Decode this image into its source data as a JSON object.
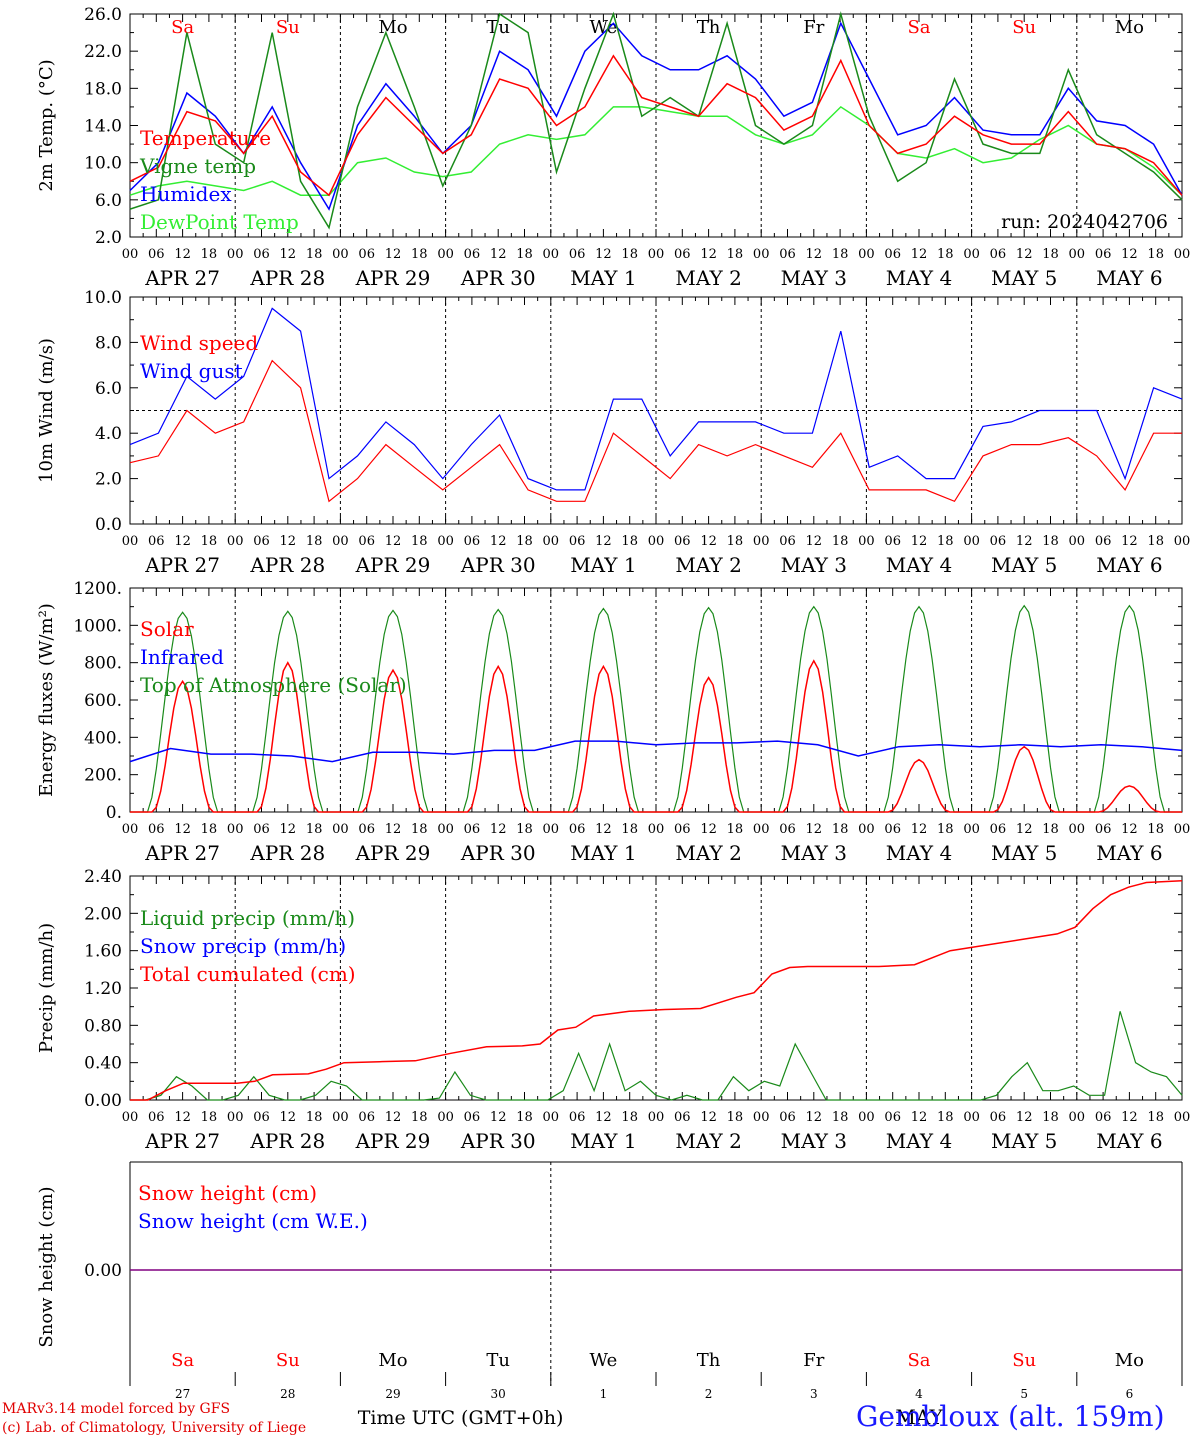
{
  "days_of_week": [
    "Sa",
    "Su",
    "Mo",
    "Tu",
    "We",
    "Th",
    "Fr",
    "Sa",
    "Su",
    "Mo"
  ],
  "weekend_flags": [
    true,
    true,
    false,
    false,
    false,
    false,
    false,
    true,
    true,
    false
  ],
  "date_labels": [
    "APR 27",
    "APR 28",
    "APR 29",
    "APR 30",
    "MAY  1",
    "MAY  2",
    "MAY  3",
    "MAY  4",
    "MAY  5",
    "MAY  6"
  ],
  "hour_ticks": [
    "00",
    "06",
    "12",
    "18"
  ],
  "final_hour_tick": "00",
  "bottom_day_numbers": [
    "27",
    "28",
    "29",
    "30",
    "1",
    "2",
    "3",
    "4",
    "5",
    "6"
  ],
  "bottom_month_label": "MAY",
  "footer": {
    "xlabel": "Time UTC (GMT+0h)",
    "credit_line1": "MARv3.14 model forced by GFS",
    "credit_line2": "(c) Lab. of Climatology, University of Liege",
    "location": "Gembloux (alt. 159m)"
  },
  "colors": {
    "red": "#ff0000",
    "green": "#1a8a1a",
    "blue": "#0000ff",
    "lightgreen": "#33ee33",
    "purple": "#800080"
  },
  "chart_data": [
    {
      "type": "line",
      "ylabel": "2m Temp. (°C)",
      "ylim": [
        2.0,
        26.0
      ],
      "yticks": [
        "2.0",
        "6.0",
        "10.0",
        "14.0",
        "18.0",
        "22.0",
        "26.0"
      ],
      "annotation": "run: 2024042706",
      "x_step_hours": 12,
      "series": [
        {
          "name": "Temperature",
          "color": "red",
          "values": [
            8.0,
            9.5,
            15.5,
            14.5,
            11.0,
            15.0,
            9.0,
            6.5,
            13.0,
            17.0,
            14.0,
            11.0,
            13.0,
            19.0,
            18.0,
            14.0,
            16.0,
            21.5,
            17.0,
            16.0,
            15.0,
            18.5,
            17.0,
            13.5,
            15.0,
            21.0,
            14.0,
            11.0,
            12.0,
            15.0,
            13.0,
            12.0,
            12.0,
            15.5,
            12.0,
            11.5,
            10.0,
            6.5
          ]
        },
        {
          "name": "Vigne temp",
          "color": "green",
          "values": [
            5.0,
            6.0,
            24.0,
            12.0,
            10.0,
            24.0,
            8.0,
            3.0,
            16.0,
            24.0,
            16.0,
            7.5,
            14.0,
            26.0,
            24.0,
            9.0,
            18.0,
            26.0,
            15.0,
            17.0,
            15.0,
            25.0,
            14.0,
            12.0,
            14.0,
            26.0,
            15.0,
            8.0,
            10.0,
            19.0,
            12.0,
            11.0,
            11.0,
            20.0,
            13.0,
            11.0,
            9.0,
            6.0
          ]
        },
        {
          "name": "Humidex",
          "color": "blue",
          "values": [
            7.0,
            10.0,
            17.5,
            15.0,
            11.0,
            16.0,
            10.0,
            5.0,
            14.0,
            18.5,
            15.0,
            11.0,
            14.0,
            22.0,
            20.0,
            15.0,
            22.0,
            25.0,
            21.5,
            20.0,
            20.0,
            21.5,
            19.0,
            15.0,
            16.5,
            25.0,
            19.0,
            13.0,
            14.0,
            17.0,
            13.5,
            13.0,
            13.0,
            18.0,
            14.5,
            14.0,
            12.0,
            6.5
          ]
        },
        {
          "name": "DewPoint Temp",
          "color": "lightgreen",
          "values": [
            6.5,
            7.5,
            8.0,
            7.5,
            7.0,
            8.0,
            6.5,
            6.5,
            10.0,
            10.5,
            9.0,
            8.5,
            9.0,
            12.0,
            13.0,
            12.5,
            13.0,
            16.0,
            16.0,
            15.5,
            15.0,
            15.0,
            13.0,
            12.0,
            13.0,
            16.0,
            14.0,
            11.0,
            10.5,
            11.5,
            10.0,
            10.5,
            12.5,
            14.0,
            12.0,
            11.5,
            9.5,
            6.5
          ]
        }
      ]
    },
    {
      "type": "line",
      "ylabel": "10m Wind (m/s)",
      "ylim": [
        0.0,
        10.0
      ],
      "yticks": [
        "0.0",
        "2.0",
        "4.0",
        "6.0",
        "8.0",
        "10.0"
      ],
      "reference_line": 5.0,
      "x_step_hours": 12,
      "series": [
        {
          "name": "Wind speed",
          "color": "red",
          "values": [
            2.7,
            3.0,
            5.0,
            4.0,
            4.5,
            7.2,
            6.0,
            1.0,
            2.0,
            3.5,
            2.5,
            1.5,
            2.5,
            3.5,
            1.5,
            1.0,
            1.0,
            4.0,
            3.0,
            2.0,
            3.5,
            3.0,
            3.5,
            3.0,
            2.5,
            4.0,
            1.5,
            1.5,
            1.5,
            1.0,
            3.0,
            3.5,
            3.5,
            3.8,
            3.0,
            1.5,
            4.0,
            4.0
          ]
        },
        {
          "name": "Wind gust",
          "color": "blue",
          "values": [
            3.5,
            4.0,
            6.5,
            5.5,
            6.5,
            9.5,
            8.5,
            2.0,
            3.0,
            4.5,
            3.5,
            2.0,
            3.5,
            4.8,
            2.0,
            1.5,
            1.5,
            5.5,
            5.5,
            3.0,
            4.5,
            4.5,
            4.5,
            4.0,
            4.0,
            8.5,
            2.5,
            3.0,
            2.0,
            2.0,
            4.3,
            4.5,
            5.0,
            5.0,
            5.0,
            2.0,
            6.0,
            5.5
          ]
        }
      ]
    },
    {
      "type": "line",
      "ylabel": "Energy fluxes (W/m²)",
      "ylim": [
        0,
        1200
      ],
      "yticks": [
        "0.",
        "200.",
        "400.",
        "600.",
        "800.",
        "1000.",
        "1200."
      ],
      "series": [
        {
          "name": "Solar",
          "color": "red",
          "daily_peaks": [
            700,
            800,
            760,
            780,
            780,
            720,
            810,
            280,
            350,
            140
          ]
        },
        {
          "name": "Infrared",
          "color": "blue",
          "values": [
            270,
            340,
            310,
            310,
            300,
            270,
            320,
            320,
            310,
            330,
            330,
            380,
            380,
            360,
            370,
            370,
            380,
            360,
            300,
            350,
            360,
            350,
            360,
            350,
            360,
            350,
            330
          ]
        },
        {
          "name": "Top of Atmosphere (Solar)",
          "color": "green",
          "daily_peaks": [
            1070,
            1075,
            1080,
            1085,
            1090,
            1095,
            1100,
            1100,
            1105,
            1105
          ]
        }
      ]
    },
    {
      "type": "line",
      "ylabel": "Precip (mm/h)",
      "ylim": [
        0.0,
        2.4
      ],
      "yticks": [
        "0.00",
        "0.40",
        "0.80",
        "1.20",
        "1.60",
        "2.00",
        "2.40"
      ],
      "series": [
        {
          "name": "Liquid precip (mm/h)",
          "color": "green",
          "values": [
            0,
            0,
            0.05,
            0.25,
            0.15,
            0,
            0,
            0.05,
            0.25,
            0.05,
            0,
            0,
            0.05,
            0.2,
            0.15,
            0,
            0,
            0,
            0,
            0,
            0.02,
            0.3,
            0.05,
            0,
            0,
            0,
            0,
            0,
            0.1,
            0.5,
            0.1,
            0.6,
            0.1,
            0.2,
            0.05,
            0,
            0.05,
            0,
            0,
            0.25,
            0.1,
            0.2,
            0.15,
            0.6,
            0.3,
            0,
            0,
            0,
            0,
            0,
            0,
            0,
            0,
            0,
            0,
            0,
            0.05,
            0.25,
            0.4,
            0.1,
            0.1,
            0.15,
            0.05,
            0.05,
            0.95,
            0.4,
            0.3,
            0.25,
            0.05
          ]
        },
        {
          "name": "Snow precip (mm/h)",
          "color": "blue",
          "values": []
        },
        {
          "name": "Total cumulated (cm)",
          "color": "red",
          "x_hours": [
            0,
            6,
            12,
            18,
            24,
            36,
            42,
            48,
            60,
            66,
            72,
            84,
            96,
            108,
            120,
            132,
            138,
            144,
            150,
            156,
            168,
            180,
            192,
            204,
            210,
            216,
            222,
            228,
            240,
            252,
            264,
            276,
            288,
            300,
            312,
            318,
            324,
            330,
            336,
            342,
            354
          ],
          "values": [
            0,
            0,
            0.1,
            0.18,
            0.18,
            0.18,
            0.2,
            0.27,
            0.28,
            0.33,
            0.4,
            0.41,
            0.42,
            0.5,
            0.57,
            0.58,
            0.6,
            0.75,
            0.78,
            0.9,
            0.95,
            0.97,
            0.98,
            1.1,
            1.15,
            1.35,
            1.42,
            1.43,
            1.43,
            1.43,
            1.45,
            1.6,
            1.66,
            1.72,
            1.78,
            1.85,
            2.05,
            2.2,
            2.28,
            2.33,
            2.35
          ]
        }
      ]
    },
    {
      "type": "line",
      "ylabel": "Snow height (cm)",
      "yticks": [
        "0.00"
      ],
      "series": [
        {
          "name": "Snow height (cm)",
          "color": "red",
          "values": [
            0,
            0
          ]
        },
        {
          "name": "Snow height (cm W.E.)",
          "color": "blue",
          "values": [
            0,
            0
          ]
        }
      ]
    }
  ]
}
